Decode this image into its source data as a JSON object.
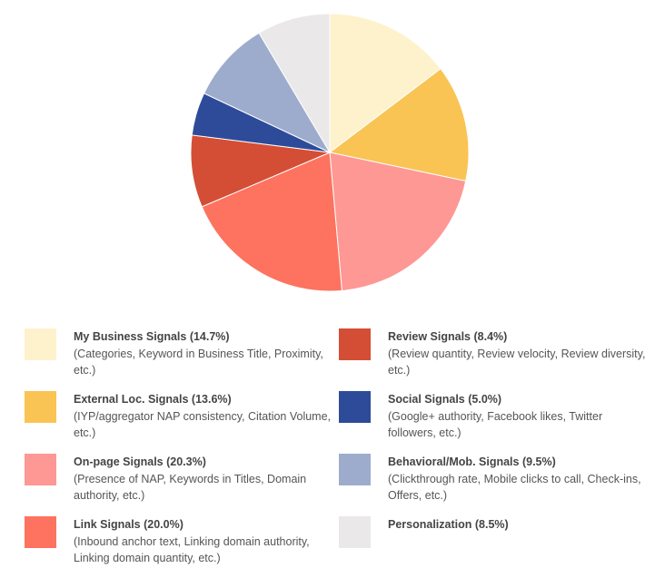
{
  "chart_data": {
    "type": "pie",
    "start": "top",
    "direction": "clockwise",
    "legend_position": "bottom",
    "slices": [
      {
        "label": "My Business Signals (14.7%)",
        "description": "(Categories, Keyword in Business Title, Proximity, etc.)",
        "value": 14.7,
        "color": "#FEF2CD"
      },
      {
        "label": "External Loc. Signals (13.6%)",
        "description": "(IYP/aggregator NAP consistency, Citation Volume, etc.)",
        "value": 13.6,
        "color": "#F9C454"
      },
      {
        "label": "On-page Signals (20.3%)",
        "description": "(Presence of NAP, Keywords in Titles, Domain authority, etc.)",
        "value": 20.3,
        "color": "#FE9894"
      },
      {
        "label": "Link Signals (20.0%)",
        "description": "(Inbound anchor text, Linking domain authority, Linking domain quantity, etc.)",
        "value": 20.0,
        "color": "#FD735F"
      },
      {
        "label": "Review Signals (8.4%)",
        "description": "(Review quantity, Review velocity, Review diversity, etc.)",
        "value": 8.4,
        "color": "#D44E35"
      },
      {
        "label": "Social Signals (5.0%)",
        "description": "(Google+ authority, Facebook likes, Twitter followers, etc.)",
        "value": 5.0,
        "color": "#2E4B9A"
      },
      {
        "label": "Behavioral/Mob. Signals (9.5%)",
        "description": "(Clickthrough rate, Mobile clicks to call, Check-ins, Offers, etc.)",
        "value": 9.5,
        "color": "#9DACCC"
      },
      {
        "label": "Personalization (8.5%)",
        "description": "",
        "value": 8.5,
        "color": "#EAE8E9"
      }
    ]
  }
}
